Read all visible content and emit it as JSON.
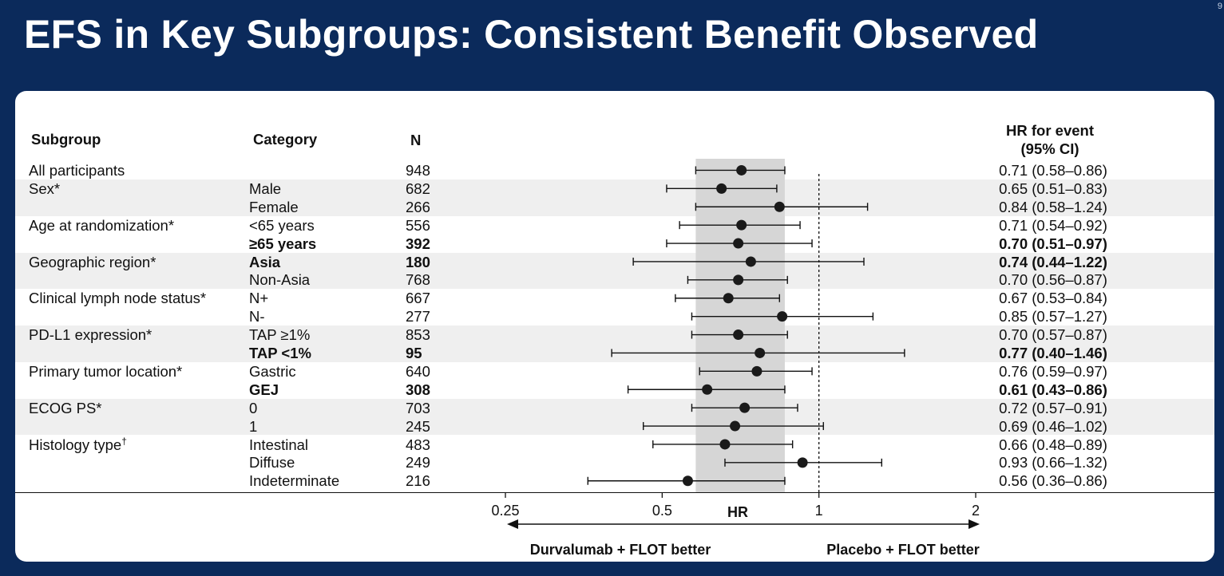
{
  "slide": {
    "title": "EFS in Key Subgroups: Consistent Benefit Observed",
    "page_number": "9"
  },
  "table": {
    "headers": {
      "subgroup": "Subgroup",
      "category": "Category",
      "n": "N",
      "hr_line1": "HR for event",
      "hr_line2": "(95% CI)"
    },
    "rows": [
      {
        "subgroup": "All participants",
        "category": "",
        "n": "948",
        "hr_text": "0.71 (0.58–0.86)",
        "bold": false
      },
      {
        "subgroup": "Sex*",
        "category": "Male",
        "n": "682",
        "hr_text": "0.65 (0.51–0.83)",
        "bold": false
      },
      {
        "subgroup": "",
        "category": "Female",
        "n": "266",
        "hr_text": "0.84 (0.58–1.24)",
        "bold": false
      },
      {
        "subgroup": "Age at randomization*",
        "category": "<65 years",
        "n": "556",
        "hr_text": "0.71 (0.54–0.92)",
        "bold": false
      },
      {
        "subgroup": "",
        "category": "≥65 years",
        "n": "392",
        "hr_text": "0.70 (0.51–0.97)",
        "bold": true
      },
      {
        "subgroup": "Geographic region*",
        "category": "Asia",
        "n": "180",
        "hr_text": "0.74 (0.44–1.22)",
        "bold": true
      },
      {
        "subgroup": "",
        "category": "Non-Asia",
        "n": "768",
        "hr_text": "0.70 (0.56–0.87)",
        "bold": false
      },
      {
        "subgroup": "Clinical lymph node status*",
        "category": "N+",
        "n": "667",
        "hr_text": "0.67 (0.53–0.84)",
        "bold": false
      },
      {
        "subgroup": "",
        "category": "N-",
        "n": "277",
        "hr_text": "0.85 (0.57–1.27)",
        "bold": false
      },
      {
        "subgroup": "PD-L1 expression*",
        "category": "TAP ≥1%",
        "n": "853",
        "hr_text": "0.70 (0.57–0.87)",
        "bold": false
      },
      {
        "subgroup": "",
        "category": "TAP <1%",
        "n": "95",
        "hr_text": "0.77 (0.40–1.46)",
        "bold": true
      },
      {
        "subgroup": "Primary tumor location*",
        "category": "Gastric",
        "n": "640",
        "hr_text": "0.76 (0.59–0.97)",
        "bold": false
      },
      {
        "subgroup": "",
        "category": "GEJ",
        "n": "308",
        "hr_text": "0.61 (0.43–0.86)",
        "bold": true
      },
      {
        "subgroup": "ECOG PS*",
        "category": "0",
        "n": "703",
        "hr_text": "0.72 (0.57–0.91)",
        "bold": false
      },
      {
        "subgroup": "",
        "category": "1",
        "n": "245",
        "hr_text": "0.69 (0.46–1.02)",
        "bold": false
      },
      {
        "subgroup": "Histology type",
        "subgroup_sup": "†",
        "category": "Intestinal",
        "n": "483",
        "hr_text": "0.66 (0.48–0.89)",
        "bold": false
      },
      {
        "subgroup": "",
        "category": "Diffuse",
        "n": "249",
        "hr_text": "0.93 (0.66–1.32)",
        "bold": false
      },
      {
        "subgroup": "",
        "category": "Indeterminate",
        "n": "216",
        "hr_text": "0.56 (0.36–0.86)",
        "bold": false
      }
    ]
  },
  "chart_data": {
    "type": "forest",
    "xscale": "log2",
    "xlim": [
      0.25,
      2
    ],
    "xlabel": "HR",
    "x_ticks": [
      0.25,
      0.5,
      1,
      2
    ],
    "x_tick_labels": [
      "0.25",
      "0.5",
      "1",
      "2"
    ],
    "reference_line": 1,
    "shaded_ci_band": [
      0.58,
      0.86
    ],
    "left_arrow_label": "Durvalumab + FLOT better",
    "right_arrow_label": "Placebo + FLOT better",
    "points": [
      {
        "label": "All participants",
        "hr": 0.71,
        "lo": 0.58,
        "hi": 0.86
      },
      {
        "label": "Male",
        "hr": 0.65,
        "lo": 0.51,
        "hi": 0.83
      },
      {
        "label": "Female",
        "hr": 0.84,
        "lo": 0.58,
        "hi": 1.24
      },
      {
        "label": "<65 years",
        "hr": 0.71,
        "lo": 0.54,
        "hi": 0.92
      },
      {
        "label": "≥65 years",
        "hr": 0.7,
        "lo": 0.51,
        "hi": 0.97
      },
      {
        "label": "Asia",
        "hr": 0.74,
        "lo": 0.44,
        "hi": 1.22
      },
      {
        "label": "Non-Asia",
        "hr": 0.7,
        "lo": 0.56,
        "hi": 0.87
      },
      {
        "label": "N+",
        "hr": 0.67,
        "lo": 0.53,
        "hi": 0.84
      },
      {
        "label": "N-",
        "hr": 0.85,
        "lo": 0.57,
        "hi": 1.27
      },
      {
        "label": "TAP ≥1%",
        "hr": 0.7,
        "lo": 0.57,
        "hi": 0.87
      },
      {
        "label": "TAP <1%",
        "hr": 0.77,
        "lo": 0.4,
        "hi": 1.46
      },
      {
        "label": "Gastric",
        "hr": 0.76,
        "lo": 0.59,
        "hi": 0.97
      },
      {
        "label": "GEJ",
        "hr": 0.61,
        "lo": 0.43,
        "hi": 0.86
      },
      {
        "label": "0",
        "hr": 0.72,
        "lo": 0.57,
        "hi": 0.91
      },
      {
        "label": "1",
        "hr": 0.69,
        "lo": 0.46,
        "hi": 1.02
      },
      {
        "label": "Intestinal",
        "hr": 0.66,
        "lo": 0.48,
        "hi": 0.89
      },
      {
        "label": "Diffuse",
        "hr": 0.93,
        "lo": 0.66,
        "hi": 1.32
      },
      {
        "label": "Indeterminate",
        "hr": 0.56,
        "lo": 0.36,
        "hi": 0.86
      }
    ]
  },
  "colors": {
    "background": "#0b2a5b",
    "panel": "#ffffff",
    "band": "#efefef",
    "shade": "#d6d6d6",
    "ink": "#111111"
  }
}
